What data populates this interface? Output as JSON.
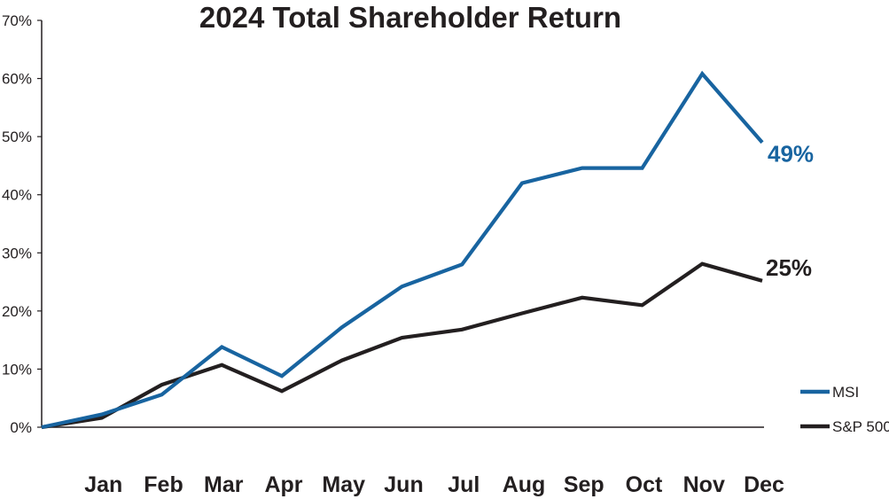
{
  "chart_data": {
    "type": "line",
    "title": "2024 Total Shareholder Return",
    "categories": [
      "",
      "Jan",
      "Feb",
      "Mar",
      "Apr",
      "May",
      "Jun",
      "Jul",
      "Aug",
      "Sep",
      "Oct",
      "Nov",
      "Dec"
    ],
    "ylim": [
      0,
      70
    ],
    "yticks": [
      0,
      10,
      20,
      30,
      40,
      50,
      60,
      70
    ],
    "ytick_labels": [
      "0%",
      "10%",
      "20%",
      "30%",
      "40%",
      "50%",
      "60%",
      "70%"
    ],
    "xlabel": "",
    "ylabel": "",
    "grid": false,
    "legend_position": "bottom-right",
    "series": [
      {
        "name": "MSI",
        "color": "#1864a0",
        "values": [
          0,
          2.2,
          5.6,
          13.8,
          8.8,
          17.2,
          24.2,
          28.0,
          42.0,
          44.6,
          44.6,
          60.8,
          49.0
        ],
        "end_label": "49%"
      },
      {
        "name": "S&P 500",
        "color": "#231f20",
        "values": [
          0,
          1.6,
          7.3,
          10.7,
          6.2,
          11.5,
          15.4,
          16.8,
          19.6,
          22.3,
          21.0,
          28.1,
          25.2
        ],
        "end_label": "25%"
      }
    ]
  }
}
